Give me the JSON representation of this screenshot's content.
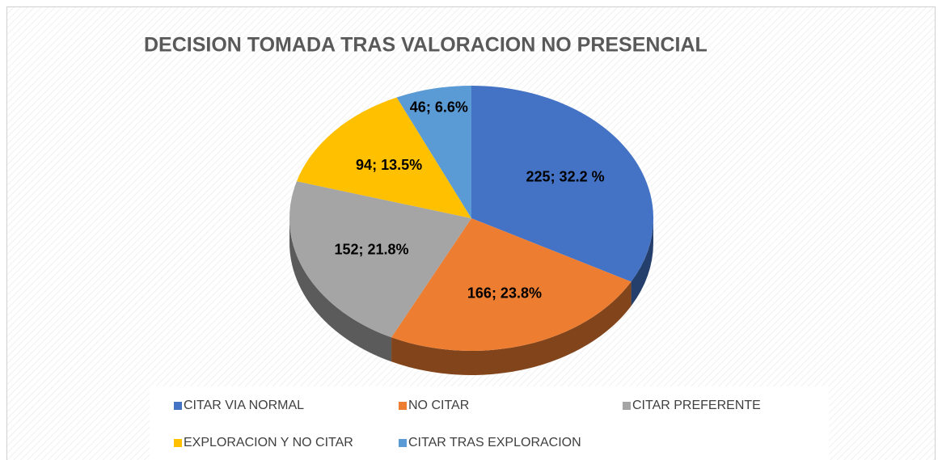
{
  "chart_data": {
    "type": "pie",
    "title": "DECISION TOMADA TRAS VALORACION NO PRESENCIAL",
    "categories": [
      "CITAR VIA NORMAL",
      "NO CITAR",
      "CITAR PREFERENTE",
      "EXPLORACION Y NO CITAR",
      "CITAR TRAS EXPLORACION"
    ],
    "values": [
      225,
      166,
      152,
      94,
      46
    ],
    "value_labels": [
      "225; 32.2 %",
      "166; 23.8%",
      "152; 21.8%",
      "94; 13.5%",
      "46; 6.6%"
    ],
    "colors": [
      "#4472c4",
      "#ed7d31",
      "#a5a5a5",
      "#ffc000",
      "#5b9bd5"
    ],
    "legend": "bottom"
  }
}
